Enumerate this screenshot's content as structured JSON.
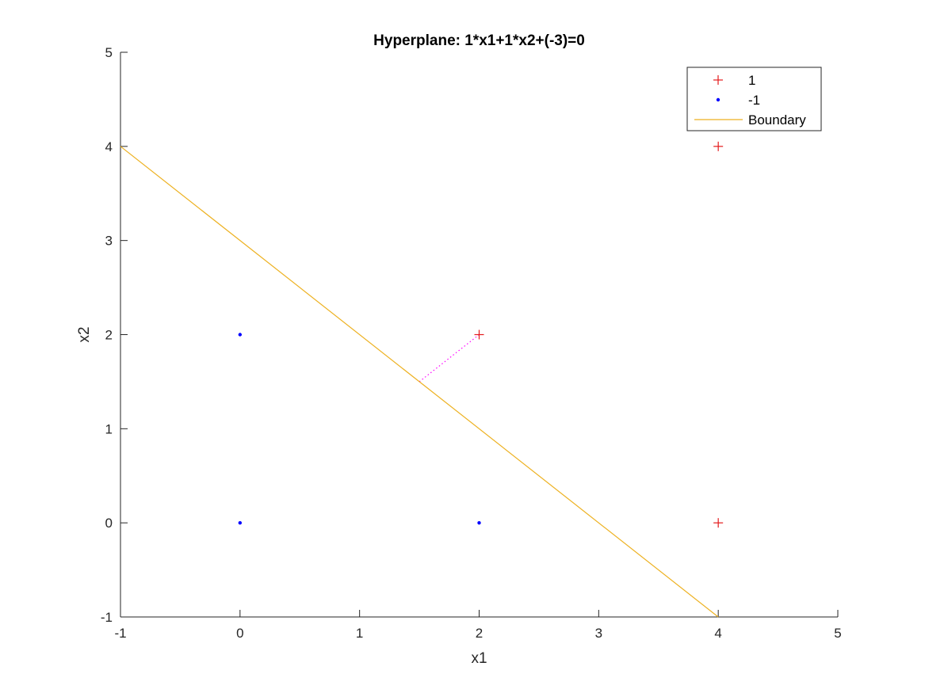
{
  "chart_data": {
    "type": "scatter",
    "title": "Hyperplane: 1*x1+1*x2+(-3)=0",
    "xlabel": "x1",
    "ylabel": "x2",
    "xlim": [
      -1,
      5
    ],
    "ylim": [
      -1,
      5
    ],
    "xticks": [
      -1,
      0,
      1,
      2,
      3,
      4,
      5
    ],
    "yticks": [
      -1,
      0,
      1,
      2,
      3,
      4,
      5
    ],
    "grid": false,
    "legend_position": "top-right",
    "series": [
      {
        "name": "1",
        "marker": "plus",
        "color": "#e41a1c",
        "points": [
          {
            "x": 2,
            "y": 2
          },
          {
            "x": 4,
            "y": 4
          },
          {
            "x": 4,
            "y": 0
          }
        ]
      },
      {
        "name": "-1",
        "marker": "dot",
        "color": "#0000ff",
        "points": [
          {
            "x": 0,
            "y": 2
          },
          {
            "x": 0,
            "y": 0
          },
          {
            "x": 2,
            "y": 0
          }
        ]
      },
      {
        "name": "Boundary",
        "marker": "line",
        "color": "#edb120",
        "points": [
          {
            "x": -1,
            "y": 4
          },
          {
            "x": 4,
            "y": -1
          }
        ]
      }
    ],
    "annotations": [
      {
        "type": "dotted-segment",
        "color": "#ff00ff",
        "from": {
          "x": 2,
          "y": 2
        },
        "to": {
          "x": 1.5,
          "y": 1.5
        }
      }
    ]
  }
}
